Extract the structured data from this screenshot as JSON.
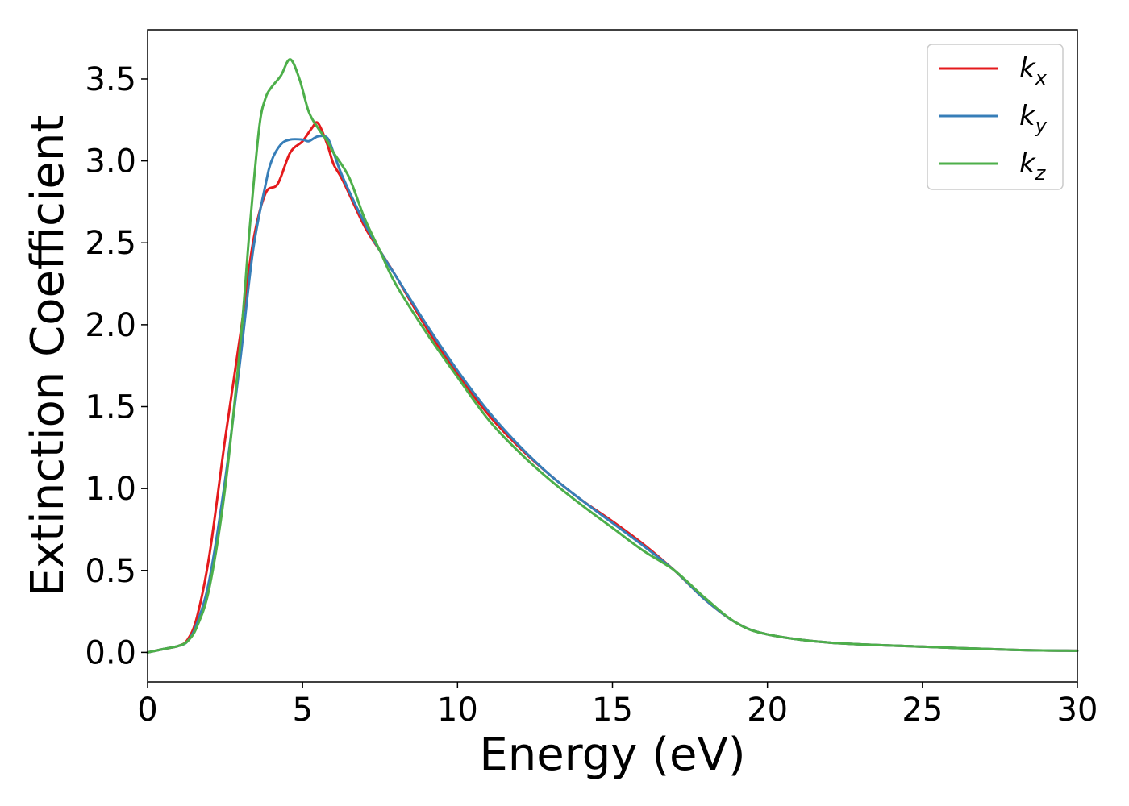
{
  "chart_data": {
    "type": "line",
    "title": "",
    "xlabel": "Energy (eV)",
    "ylabel": "Extinction Coefficient",
    "xlim": [
      0,
      30
    ],
    "ylim": [
      -0.18,
      3.8
    ],
    "xticks": [
      0,
      5,
      10,
      15,
      20,
      25,
      30
    ],
    "yticks": [
      "0.0",
      "0.5",
      "1.0",
      "1.5",
      "2.0",
      "2.5",
      "3.0",
      "3.5"
    ],
    "grid": false,
    "legend": {
      "placement": "top-right",
      "entries": [
        {
          "base": "k",
          "sub": "x",
          "color": "#e41a1c"
        },
        {
          "base": "k",
          "sub": "y",
          "color": "#377eb8"
        },
        {
          "base": "k",
          "sub": "z",
          "color": "#4daf4a"
        }
      ]
    },
    "series": [
      {
        "color": "#e41a1c",
        "x": [
          0,
          0.5,
          1.0,
          1.3,
          1.6,
          2.0,
          2.5,
          3.0,
          3.4,
          3.8,
          4.2,
          4.6,
          5.0,
          5.3,
          5.5,
          5.8,
          6.0,
          6.3,
          7.0,
          7.5,
          8.0,
          9.0,
          10.0,
          11.0,
          12.0,
          13.0,
          14.0,
          15.0,
          16.0,
          17.0,
          18.0,
          19.0,
          20.0,
          22.0,
          25.0,
          28.0,
          30.0
        ],
        "y": [
          0.0,
          0.02,
          0.04,
          0.08,
          0.22,
          0.6,
          1.3,
          1.95,
          2.5,
          2.8,
          2.86,
          3.05,
          3.12,
          3.2,
          3.23,
          3.1,
          2.98,
          2.88,
          2.6,
          2.45,
          2.3,
          1.98,
          1.7,
          1.45,
          1.25,
          1.08,
          0.93,
          0.8,
          0.66,
          0.5,
          0.32,
          0.18,
          0.11,
          0.06,
          0.035,
          0.015,
          0.01
        ]
      },
      {
        "color": "#377eb8",
        "x": [
          0,
          0.5,
          1.0,
          1.3,
          1.6,
          2.0,
          2.5,
          3.0,
          3.4,
          3.8,
          4.0,
          4.3,
          4.6,
          5.0,
          5.2,
          5.5,
          5.8,
          6.0,
          6.3,
          7.0,
          7.5,
          8.0,
          9.0,
          10.0,
          11.0,
          12.0,
          13.0,
          14.0,
          15.0,
          16.0,
          17.0,
          18.0,
          19.0,
          20.0,
          22.0,
          25.0,
          28.0,
          30.0
        ],
        "y": [
          0.0,
          0.02,
          0.04,
          0.07,
          0.18,
          0.45,
          1.05,
          1.8,
          2.45,
          2.85,
          3.0,
          3.1,
          3.13,
          3.13,
          3.12,
          3.15,
          3.14,
          3.05,
          2.9,
          2.62,
          2.45,
          2.3,
          2.0,
          1.72,
          1.47,
          1.26,
          1.08,
          0.93,
          0.79,
          0.65,
          0.5,
          0.32,
          0.18,
          0.11,
          0.06,
          0.035,
          0.015,
          0.01
        ]
      },
      {
        "color": "#4daf4a",
        "x": [
          0,
          0.5,
          1.0,
          1.3,
          1.6,
          2.0,
          2.5,
          3.0,
          3.3,
          3.6,
          3.8,
          4.0,
          4.3,
          4.6,
          4.9,
          5.2,
          5.5,
          5.8,
          6.0,
          6.5,
          7.0,
          7.5,
          8.0,
          9.0,
          10.0,
          11.0,
          12.0,
          13.0,
          14.0,
          15.0,
          16.0,
          17.0,
          18.0,
          19.0,
          20.0,
          22.0,
          25.0,
          28.0,
          30.0
        ],
        "y": [
          0.0,
          0.02,
          0.04,
          0.07,
          0.16,
          0.4,
          1.0,
          1.9,
          2.6,
          3.2,
          3.38,
          3.45,
          3.52,
          3.62,
          3.5,
          3.3,
          3.2,
          3.12,
          3.05,
          2.9,
          2.65,
          2.45,
          2.25,
          1.95,
          1.68,
          1.42,
          1.22,
          1.05,
          0.9,
          0.76,
          0.62,
          0.5,
          0.33,
          0.18,
          0.11,
          0.06,
          0.035,
          0.015,
          0.01
        ]
      }
    ]
  }
}
